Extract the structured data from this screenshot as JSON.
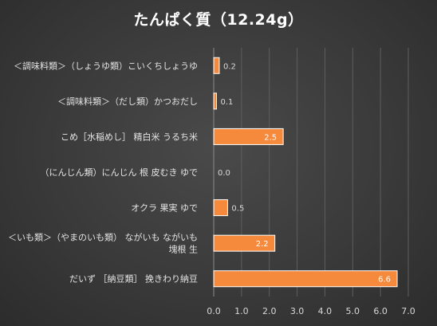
{
  "chart_data": {
    "type": "bar",
    "orientation": "horizontal",
    "title": "たんぱく質（12.24g）",
    "categories": [
      "＜調味料類＞（しょうゆ類）こいくちしょうゆ",
      "＜調味料類＞（だし類）かつおだし",
      "こめ［水稲めし］ 精白米 うるち米",
      "（にんじん類）にんじん 根 皮むき ゆで",
      "オクラ 果実 ゆで",
      "＜いも類＞（やまのいも類） ながいも ながいも 塊根 生",
      "だいず ［納豆類］ 挽きわり納豆"
    ],
    "category_lines": [
      [
        "＜調味料類＞（しょうゆ類）こいくちしょうゆ"
      ],
      [
        "＜調味料類＞（だし類）かつおだし"
      ],
      [
        "こめ［水稲めし］ 精白米 うるち米"
      ],
      [
        "（にんじん類）にんじん 根 皮むき ゆで"
      ],
      [
        "オクラ 果実 ゆで"
      ],
      [
        "＜いも類＞（やまのいも類） ながいも ながいも",
        "塊根 生"
      ],
      [
        "だいず ［納豆類］ 挽きわり納豆"
      ]
    ],
    "values": [
      0.2,
      0.1,
      2.5,
      0.0,
      0.5,
      2.2,
      6.6
    ],
    "value_labels": [
      "0.2",
      "0.1",
      "2.5",
      "0.0",
      "0.5",
      "2.2",
      "6.6"
    ],
    "xlim": [
      0,
      7
    ],
    "ticks": [
      0,
      1,
      2,
      3,
      4,
      5,
      6,
      7
    ],
    "tick_labels": [
      "0.0",
      "1.0",
      "2.0",
      "3.0",
      "4.0",
      "5.0",
      "6.0",
      "7.0"
    ],
    "xlabel": "",
    "ylabel": "",
    "grid": true,
    "legend": "none",
    "colors": {
      "bar": "#f58a3c",
      "bar_border": "#ffffff",
      "background": "#3a3a3a",
      "gridline": "#5e5e5e",
      "text": "#e4e4e4"
    }
  }
}
